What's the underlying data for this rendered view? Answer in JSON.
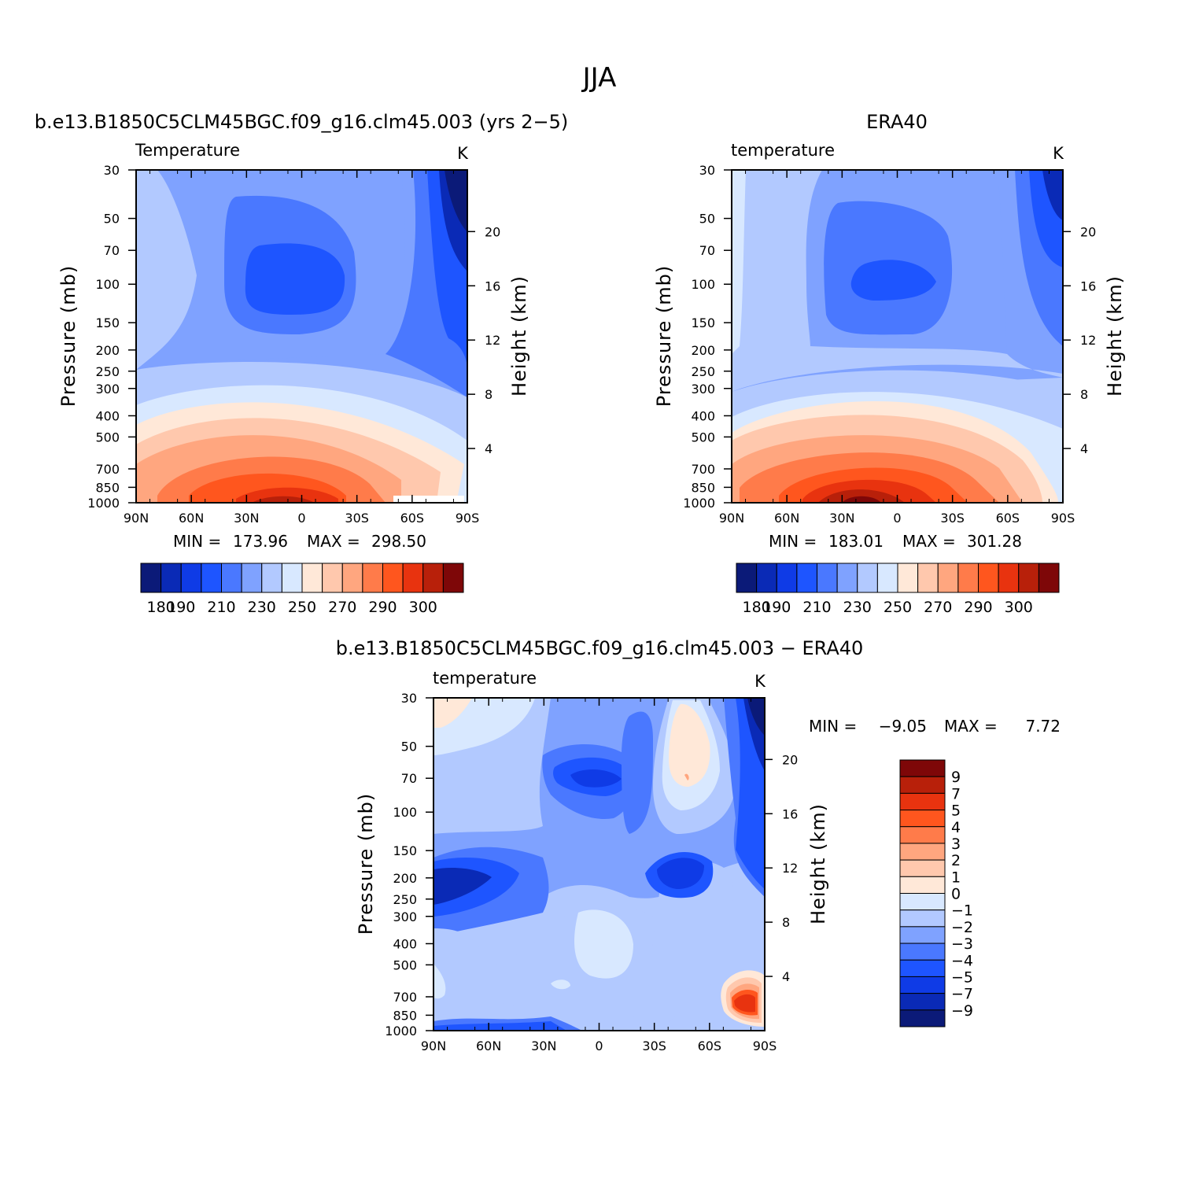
{
  "figure": {
    "title": "JJA"
  },
  "colors": {
    "temperature_levels": [
      "#0b1a78",
      "#0a2ab6",
      "#0f3be6",
      "#1e55ff",
      "#4a78ff",
      "#7fa2ff",
      "#b2c9ff",
      "#d8e8ff",
      "#ffe8d8",
      "#ffc8ad",
      "#ffa67f",
      "#ff7b4a",
      "#ff561e",
      "#e8330f",
      "#b8200a",
      "#7e0708"
    ],
    "difference_levels": [
      "#7e0708",
      "#b8200a",
      "#e8330f",
      "#ff561e",
      "#ff7b4a",
      "#ffa67f",
      "#ffc8ad",
      "#ffe8d8",
      "#d8e8ff",
      "#b2c9ff",
      "#7fa2ff",
      "#4a78ff",
      "#1e55ff",
      "#0f3be6",
      "#0a2ab6",
      "#0b1a78"
    ]
  },
  "chart_data": [
    {
      "type": "heatmap",
      "title": "b.e13.B1850C5CLM45BGC.f09_g16.clm45.003 (yrs 2−5)",
      "left_label": "Temperature",
      "units": "K",
      "ylabel": "Pressure (mb)",
      "y2label": "Height (km)",
      "x_ticks": [
        "90N",
        "60N",
        "30N",
        "0",
        "30S",
        "60S",
        "90S"
      ],
      "y_ticks": [
        "30",
        "50",
        "70",
        "100",
        "150",
        "200",
        "250",
        "300",
        "400",
        "500",
        "700",
        "850",
        "1000"
      ],
      "y2_ticks": [
        "20",
        "16",
        "12",
        "8",
        "4"
      ],
      "min_label": "MIN =",
      "min": "173.96",
      "max_label": "MAX =",
      "max": "298.50",
      "colorbar_labels": [
        "180",
        "190",
        "210",
        "230",
        "250",
        "270",
        "290",
        "300"
      ]
    },
    {
      "type": "heatmap",
      "title": "ERA40",
      "left_label": "temperature",
      "units": "K",
      "ylabel": "Pressure (mb)",
      "y2label": "Height (km)",
      "x_ticks": [
        "90N",
        "60N",
        "30N",
        "0",
        "30S",
        "60S",
        "90S"
      ],
      "y_ticks": [
        "30",
        "50",
        "70",
        "100",
        "150",
        "200",
        "250",
        "300",
        "400",
        "500",
        "700",
        "850",
        "1000"
      ],
      "y2_ticks": [
        "20",
        "16",
        "12",
        "8",
        "4"
      ],
      "min_label": "MIN =",
      "min": "183.01",
      "max_label": "MAX =",
      "max": "301.28",
      "colorbar_labels": [
        "180",
        "190",
        "210",
        "230",
        "250",
        "270",
        "290",
        "300"
      ]
    },
    {
      "type": "heatmap",
      "title": "b.e13.B1850C5CLM45BGC.f09_g16.clm45.003 − ERA40",
      "left_label": "temperature",
      "units": "K",
      "ylabel": "Pressure (mb)",
      "y2label": "Height (km)",
      "x_ticks": [
        "90N",
        "60N",
        "30N",
        "0",
        "30S",
        "60S",
        "90S"
      ],
      "y_ticks": [
        "30",
        "50",
        "70",
        "100",
        "150",
        "200",
        "250",
        "300",
        "400",
        "500",
        "700",
        "850",
        "1000"
      ],
      "y2_ticks": [
        "20",
        "16",
        "12",
        "8",
        "4"
      ],
      "min_label": "MIN =",
      "min": "−9.05",
      "max_label": "MAX =",
      "max": "7.72",
      "colorbar_labels": [
        "9",
        "7",
        "5",
        "4",
        "3",
        "2",
        "1",
        "0",
        "−1",
        "−2",
        "−3",
        "−4",
        "−5",
        "−7",
        "−9"
      ]
    }
  ]
}
